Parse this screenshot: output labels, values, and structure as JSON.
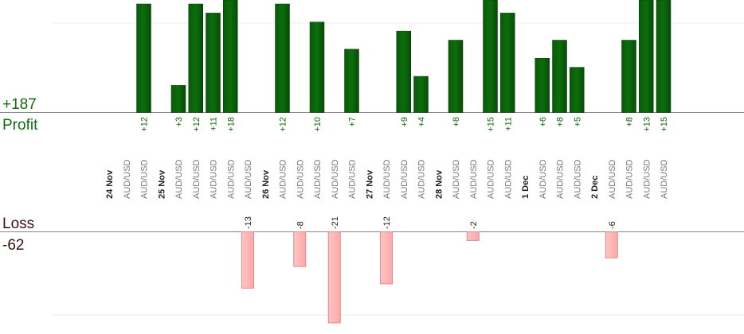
{
  "summary": {
    "profit_total": "+187",
    "profit_label": "Profit",
    "loss_label": "Loss",
    "loss_total": "-62"
  },
  "colors": {
    "profit_bar": "#0b6b0b",
    "loss_bar": "#ffb6b6",
    "profit_text": "#0d6e0d"
  },
  "chart_data": {
    "type": "bar",
    "profit_scale_max": 12,
    "loss_scale_max": 21,
    "slots": [
      {
        "label": "24 Nov",
        "kind": "date"
      },
      {
        "label": "AUD/USD",
        "kind": "pair",
        "value": null
      },
      {
        "label": "AUD/USD",
        "kind": "pair",
        "value": 12
      },
      {
        "label": "25 Nov",
        "kind": "date"
      },
      {
        "label": "AUD/USD",
        "kind": "pair",
        "value": 3
      },
      {
        "label": "AUD/USD",
        "kind": "pair",
        "value": 12
      },
      {
        "label": "AUD/USD",
        "kind": "pair",
        "value": 11
      },
      {
        "label": "AUD/USD",
        "kind": "pair",
        "value": 18
      },
      {
        "label": "AUD/USD",
        "kind": "pair",
        "value": -13
      },
      {
        "label": "26 Nov",
        "kind": "date"
      },
      {
        "label": "AUD/USD",
        "kind": "pair",
        "value": 12
      },
      {
        "label": "AUD/USD",
        "kind": "pair",
        "value": -8
      },
      {
        "label": "AUD/USD",
        "kind": "pair",
        "value": 10
      },
      {
        "label": "AUD/USD",
        "kind": "pair",
        "value": -21
      },
      {
        "label": "AUD/USD",
        "kind": "pair",
        "value": 7
      },
      {
        "label": "27 Nov",
        "kind": "date"
      },
      {
        "label": "AUD/USD",
        "kind": "pair",
        "value": -12
      },
      {
        "label": "AUD/USD",
        "kind": "pair",
        "value": 9
      },
      {
        "label": "AUD/USD",
        "kind": "pair",
        "value": 4
      },
      {
        "label": "28 Nov",
        "kind": "date"
      },
      {
        "label": "AUD/USD",
        "kind": "pair",
        "value": 8
      },
      {
        "label": "AUD/USD",
        "kind": "pair",
        "value": -2
      },
      {
        "label": "AUD/USD",
        "kind": "pair",
        "value": 15
      },
      {
        "label": "AUD/USD",
        "kind": "pair",
        "value": 11
      },
      {
        "label": "1 Dec",
        "kind": "date"
      },
      {
        "label": "AUD/USD",
        "kind": "pair",
        "value": 6
      },
      {
        "label": "AUD/USD",
        "kind": "pair",
        "value": 8
      },
      {
        "label": "AUD/USD",
        "kind": "pair",
        "value": 5
      },
      {
        "label": "2 Dec",
        "kind": "date"
      },
      {
        "label": "AUD/USD",
        "kind": "pair",
        "value": -6
      },
      {
        "label": "AUD/USD",
        "kind": "pair",
        "value": 8
      },
      {
        "label": "AUD/USD",
        "kind": "pair",
        "value": 13
      },
      {
        "label": "AUD/USD",
        "kind": "pair",
        "value": 15
      }
    ]
  }
}
